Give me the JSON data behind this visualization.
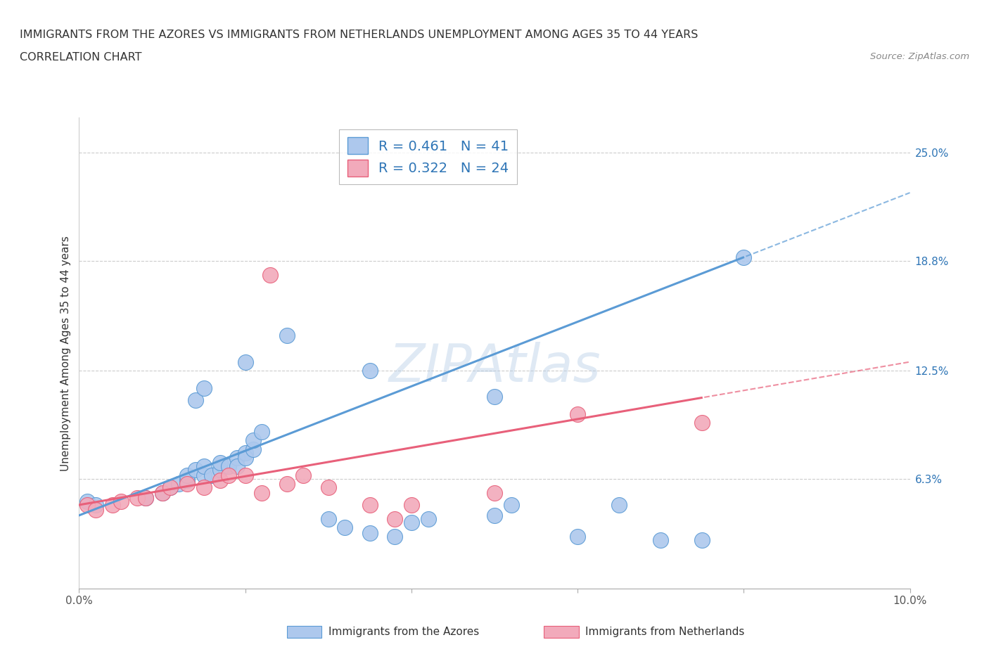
{
  "title_line1": "IMMIGRANTS FROM THE AZORES VS IMMIGRANTS FROM NETHERLANDS UNEMPLOYMENT AMONG AGES 35 TO 44 YEARS",
  "title_line2": "CORRELATION CHART",
  "source": "Source: ZipAtlas.com",
  "ylabel": "Unemployment Among Ages 35 to 44 years",
  "xlim": [
    0.0,
    0.1
  ],
  "ylim": [
    0.0,
    0.27
  ],
  "ytick_right_values": [
    0.063,
    0.125,
    0.188,
    0.25
  ],
  "ytick_right_labels": [
    "6.3%",
    "12.5%",
    "18.8%",
    "25.0%"
  ],
  "r_azores": 0.461,
  "n_azores": 41,
  "r_netherlands": 0.322,
  "n_netherlands": 24,
  "color_azores": "#adc8ed",
  "color_netherlands": "#f2aabb",
  "color_azores_line": "#5b9bd5",
  "color_netherlands_line": "#e8607a",
  "color_azores_dark": "#2e75b6",
  "color_netherlands_dark": "#c0143c",
  "legend_label_azores": "Immigrants from the Azores",
  "legend_label_netherlands": "Immigrants from Netherlands",
  "watermark": "ZIPAtlas",
  "azores_x": [
    0.001,
    0.002,
    0.008,
    0.01,
    0.011,
    0.012,
    0.013,
    0.013,
    0.014,
    0.015,
    0.015,
    0.016,
    0.017,
    0.017,
    0.018,
    0.019,
    0.019,
    0.02,
    0.02,
    0.021,
    0.021,
    0.022,
    0.014,
    0.015,
    0.02,
    0.025,
    0.03,
    0.032,
    0.035,
    0.038,
    0.04,
    0.042,
    0.05,
    0.052,
    0.06,
    0.065,
    0.07,
    0.075,
    0.08,
    0.035,
    0.05
  ],
  "azores_y": [
    0.05,
    0.048,
    0.052,
    0.055,
    0.058,
    0.06,
    0.062,
    0.065,
    0.068,
    0.065,
    0.07,
    0.065,
    0.068,
    0.072,
    0.07,
    0.075,
    0.07,
    0.078,
    0.075,
    0.08,
    0.085,
    0.09,
    0.108,
    0.115,
    0.13,
    0.145,
    0.04,
    0.035,
    0.032,
    0.03,
    0.038,
    0.04,
    0.042,
    0.048,
    0.03,
    0.048,
    0.028,
    0.028,
    0.19,
    0.125,
    0.11
  ],
  "netherlands_x": [
    0.001,
    0.002,
    0.004,
    0.005,
    0.007,
    0.008,
    0.01,
    0.011,
    0.013,
    0.015,
    0.017,
    0.018,
    0.02,
    0.022,
    0.023,
    0.025,
    0.027,
    0.03,
    0.035,
    0.038,
    0.04,
    0.05,
    0.06,
    0.075
  ],
  "netherlands_y": [
    0.048,
    0.045,
    0.048,
    0.05,
    0.052,
    0.052,
    0.055,
    0.058,
    0.06,
    0.058,
    0.062,
    0.065,
    0.065,
    0.055,
    0.18,
    0.06,
    0.065,
    0.058,
    0.048,
    0.04,
    0.048,
    0.055,
    0.1,
    0.095
  ],
  "az_line_intercept": 0.042,
  "az_line_slope": 1.85,
  "nl_line_intercept": 0.048,
  "nl_line_slope": 0.82
}
